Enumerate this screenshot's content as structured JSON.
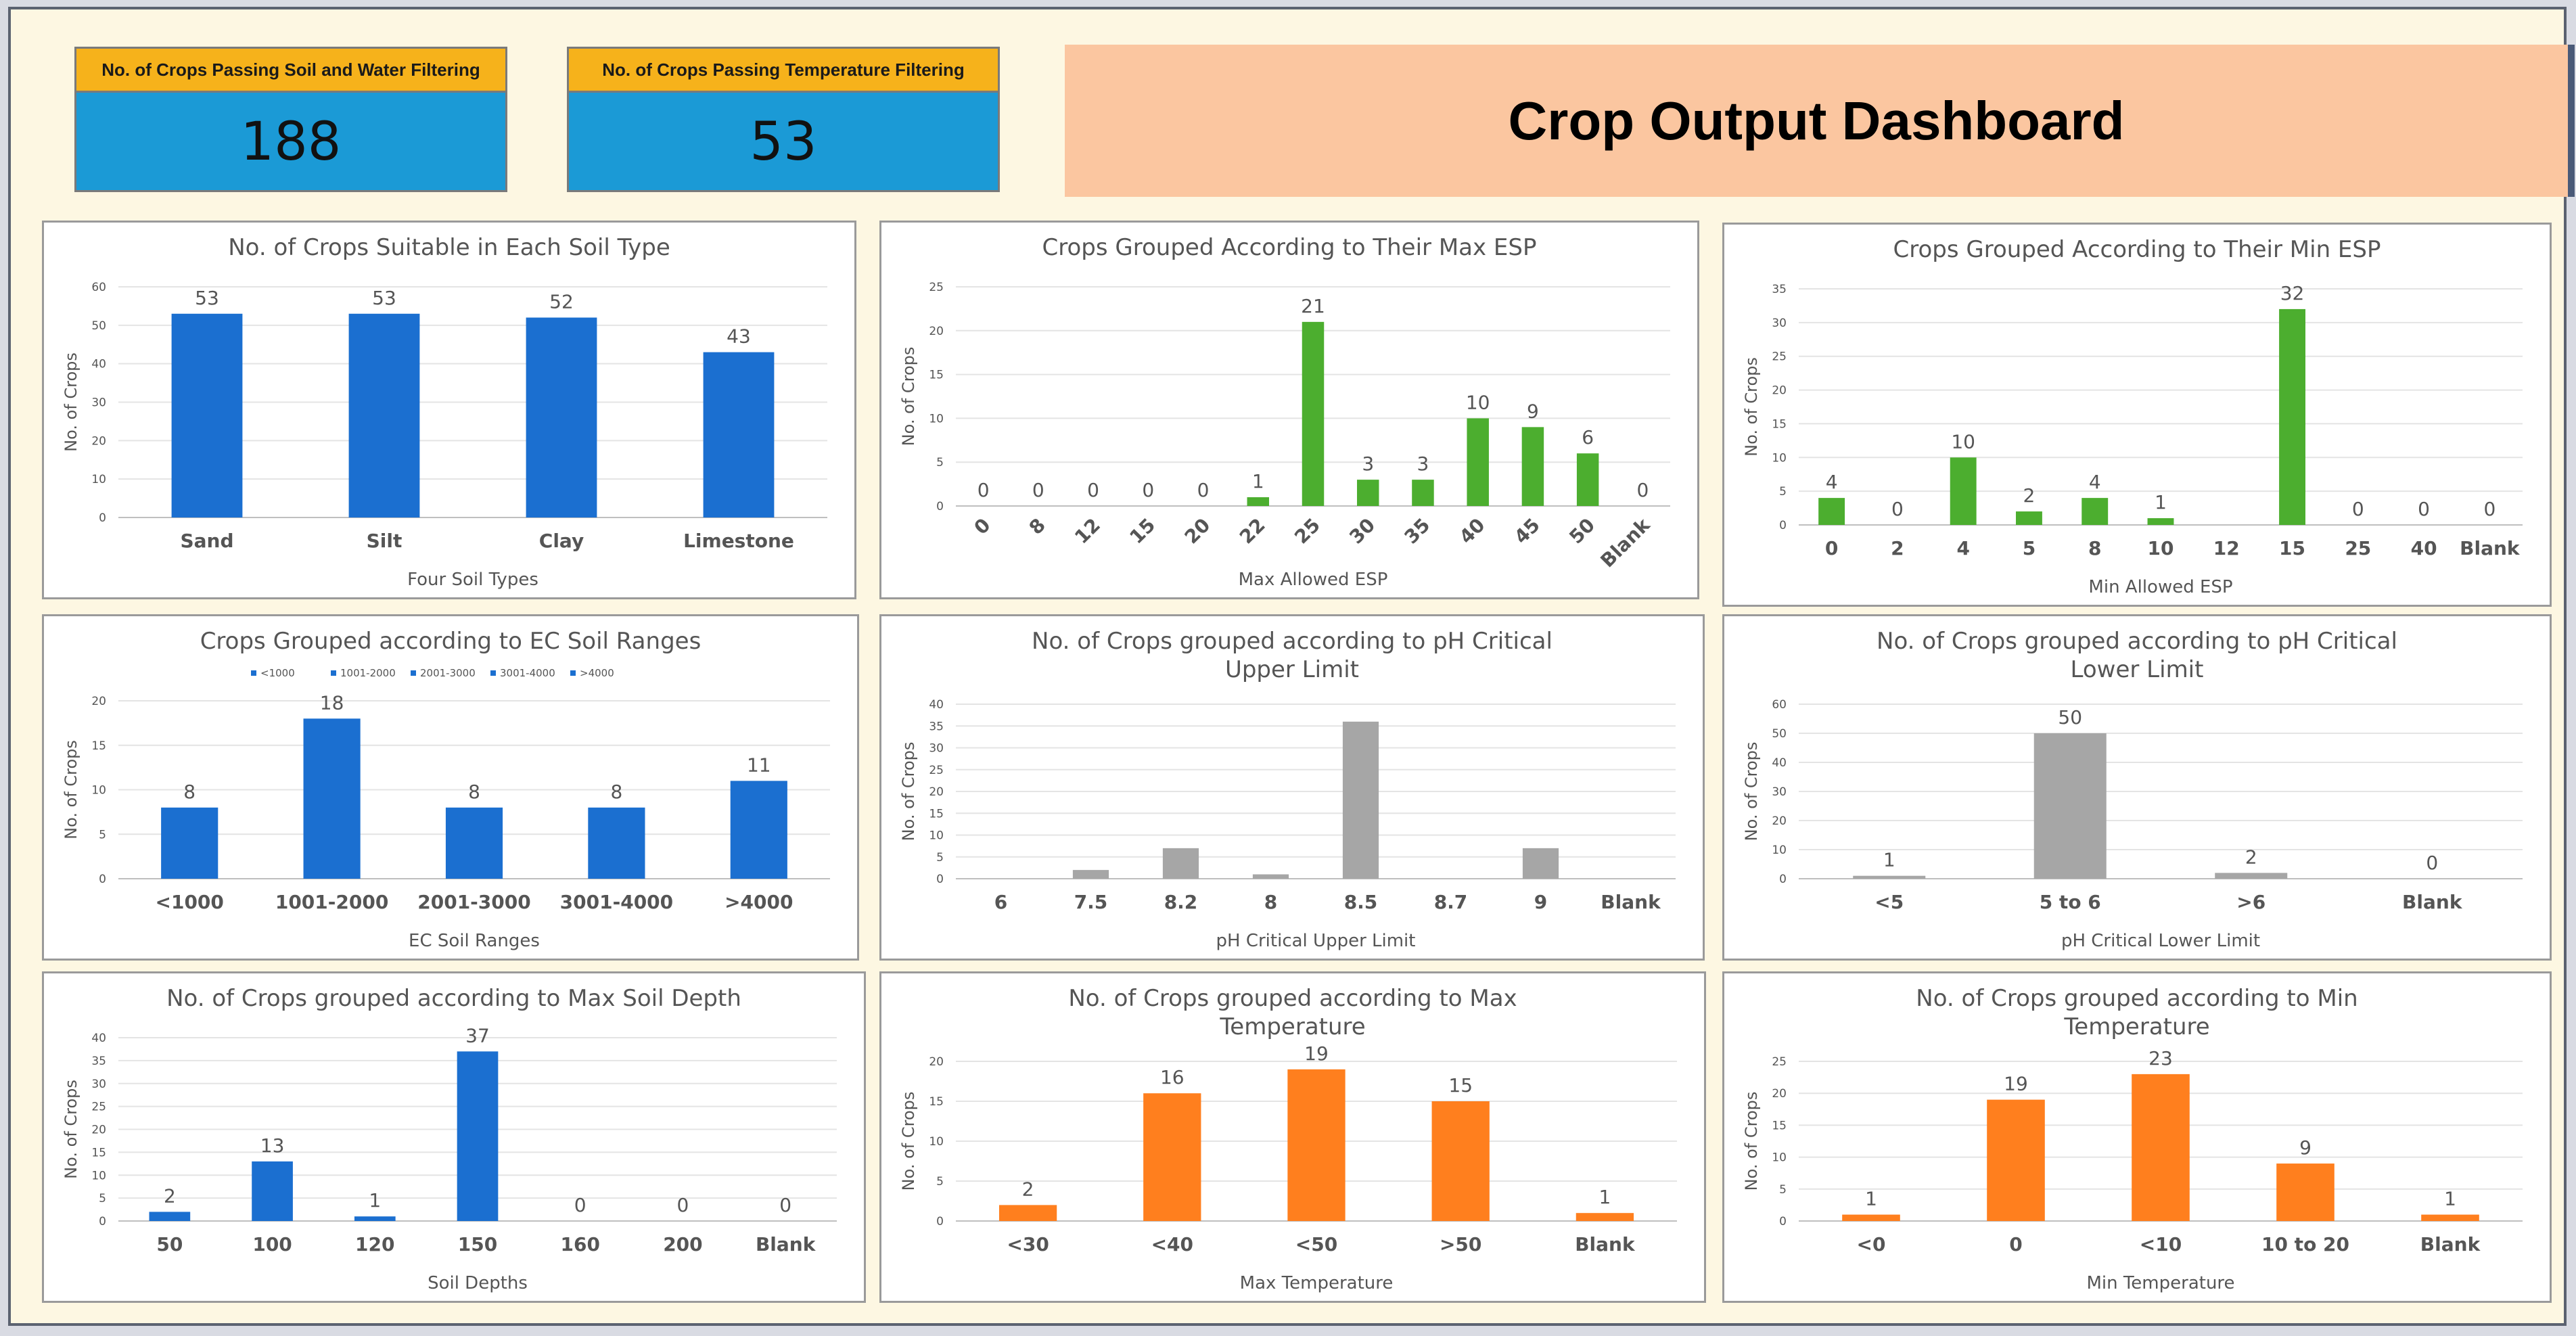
{
  "kpis": [
    {
      "label": "No. of Crops Passing Soil and Water Filtering",
      "value": "188"
    },
    {
      "label": "No. of Crops Passing Temperature Filtering",
      "value": "53"
    }
  ],
  "dashboard_title": "Crop Output Dashboard",
  "colors": {
    "blue": "#1b6fd0",
    "green": "#4cae2f",
    "gray": "#a6a6a6",
    "orange": "#ff7f1e",
    "tick_label": "#ec7630"
  },
  "chart_data": [
    {
      "type": "bar",
      "title": "No. of Crops Suitable in Each Soil Type",
      "xlabel": "Four Soil Types",
      "ylabel": "No. of Crops",
      "categories": [
        "Sand",
        "Silt",
        "Clay",
        "Limestone"
      ],
      "values": [
        53,
        53,
        52,
        43
      ],
      "labels": [
        "53",
        "53",
        "52",
        "43"
      ],
      "ylim": [
        0,
        60
      ],
      "yticks": [
        0,
        10,
        20,
        30,
        40,
        50,
        60
      ],
      "color": "blue"
    },
    {
      "type": "bar",
      "title": "Crops Grouped According to Their Max ESP",
      "xlabel": "Max Allowed ESP",
      "ylabel": "No. of Crops",
      "categories": [
        "0",
        "8",
        "12",
        "15",
        "20",
        "22",
        "25",
        "30",
        "35",
        "40",
        "45",
        "50",
        "Blank"
      ],
      "values": [
        0,
        0,
        0,
        0,
        0,
        1,
        21,
        3,
        3,
        10,
        9,
        6,
        0
      ],
      "labels": [
        "0",
        "0",
        "0",
        "0",
        "0",
        "1",
        "21",
        "3",
        "3",
        "10",
        "9",
        "6",
        "0"
      ],
      "ylim": [
        0,
        25
      ],
      "yticks": [
        0,
        5,
        10,
        15,
        20,
        25
      ],
      "color": "green",
      "rotate": true
    },
    {
      "type": "bar",
      "title": "Crops Grouped According to Their Min ESP",
      "xlabel": "Min Allowed ESP",
      "ylabel": "No. of Crops",
      "categories": [
        "0",
        "2",
        "4",
        "5",
        "8",
        "10",
        "12",
        "15",
        "25",
        "40",
        "Blank"
      ],
      "values": [
        4,
        0,
        10,
        2,
        4,
        1,
        null,
        32,
        0,
        0,
        0
      ],
      "labels": [
        "4",
        "0",
        "10",
        "2",
        "4",
        "1",
        "",
        "32",
        "0",
        "0",
        "0"
      ],
      "ylim": [
        0,
        35
      ],
      "yticks": [
        0,
        5,
        10,
        15,
        20,
        25,
        30,
        35
      ],
      "color": "green"
    },
    {
      "type": "bar",
      "title": "Crops Grouped according to EC Soil Ranges",
      "xlabel": "EC Soil Ranges",
      "ylabel": "No. of Crops",
      "categories": [
        "<1000",
        "1001-2000",
        "2001-3000",
        "3001-4000",
        ">4000"
      ],
      "values": [
        8,
        18,
        8,
        8,
        11
      ],
      "labels": [
        "8",
        "18",
        "8",
        "8",
        "11"
      ],
      "ylim": [
        0,
        20
      ],
      "yticks": [
        0,
        5,
        10,
        15,
        20
      ],
      "color": "blue",
      "legend": [
        "<1000",
        "1001-2000",
        "2001-3000",
        "3001-4000",
        ">4000"
      ]
    },
    {
      "type": "bar",
      "title": "No. of Crops grouped according to pH Critical Upper Limit",
      "title_lines": [
        "No. of Crops grouped according to pH Critical",
        "Upper Limit"
      ],
      "xlabel": "pH Critical Upper Limit",
      "ylabel": "No. of Crops",
      "categories": [
        "6",
        "7.5",
        "8.2",
        "8",
        "8.5",
        "8.7",
        "9",
        "Blank"
      ],
      "values": [
        0,
        2,
        7,
        1,
        36,
        0,
        7,
        0
      ],
      "labels": [
        "",
        "",
        "",
        "",
        "",
        "",
        "",
        ""
      ],
      "ylim": [
        0,
        40
      ],
      "yticks": [
        0,
        5,
        10,
        15,
        20,
        25,
        30,
        35,
        40
      ],
      "color": "gray"
    },
    {
      "type": "bar",
      "title": "No. of Crops grouped according to pH Critical Lower Limit",
      "title_lines": [
        "No. of Crops grouped according to pH Critical",
        "Lower Limit"
      ],
      "xlabel": "pH Critical Lower Limit",
      "ylabel": "No. of Crops",
      "categories": [
        "<5",
        "5 to 6",
        ">6",
        "Blank"
      ],
      "values": [
        1,
        50,
        2,
        0
      ],
      "labels": [
        "1",
        "50",
        "2",
        "0"
      ],
      "ylim": [
        0,
        60
      ],
      "yticks": [
        0,
        10,
        20,
        30,
        40,
        50,
        60
      ],
      "color": "gray"
    },
    {
      "type": "bar",
      "title": "No. of Crops grouped according to Max Soil Depth",
      "xlabel": "Soil Depths",
      "ylabel": "No. of Crops",
      "categories": [
        "50",
        "100",
        "120",
        "150",
        "160",
        "200",
        "Blank"
      ],
      "values": [
        2,
        13,
        1,
        37,
        0,
        0,
        0
      ],
      "labels": [
        "2",
        "13",
        "1",
        "37",
        "0",
        "0",
        "0"
      ],
      "ylim": [
        0,
        40
      ],
      "yticks": [
        0,
        5,
        10,
        15,
        20,
        25,
        30,
        35,
        40
      ],
      "color": "blue"
    },
    {
      "type": "bar",
      "title": "No. of Crops grouped according to Max Temperature",
      "title_lines": [
        "No. of Crops grouped according to Max",
        "Temperature"
      ],
      "xlabel": "Max Temperature",
      "ylabel": "No. of Crops",
      "categories": [
        "<30",
        "<40",
        "<50",
        ">50",
        "Blank"
      ],
      "values": [
        2,
        16,
        19,
        15,
        1
      ],
      "labels": [
        "2",
        "16",
        "19",
        "15",
        "1"
      ],
      "ylim": [
        0,
        20
      ],
      "yticks": [
        0,
        5,
        10,
        15,
        20
      ],
      "color": "orange"
    },
    {
      "type": "bar",
      "title": "No. of Crops grouped according to Min Temperature",
      "title_lines": [
        "No. of Crops grouped according to Min",
        "Temperature"
      ],
      "xlabel": "Min Temperature",
      "ylabel": "No. of Crops",
      "categories": [
        "<0",
        "0",
        "<10",
        "10 to 20",
        "Blank"
      ],
      "values": [
        1,
        19,
        23,
        9,
        1
      ],
      "labels": [
        "1",
        "19",
        "23",
        "9",
        "1"
      ],
      "ylim": [
        0,
        25
      ],
      "yticks": [
        0,
        5,
        10,
        15,
        20,
        25
      ],
      "color": "orange"
    }
  ]
}
